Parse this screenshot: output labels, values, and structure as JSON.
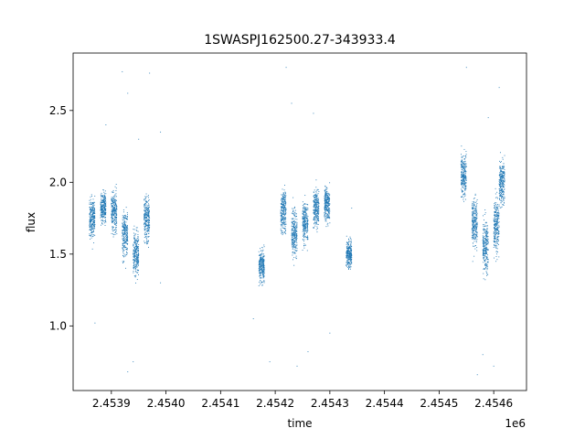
{
  "chart_data": {
    "type": "scatter",
    "title": "1SWASPJ162500.27-343933.4",
    "xlabel": "time",
    "ylabel": "flux",
    "x_offset_label": "1e6",
    "xlim": [
      2.45383,
      2.45466
    ],
    "ylim": [
      0.55,
      2.9
    ],
    "x_ticks": [
      2.4539,
      2.454,
      2.4541,
      2.4542,
      2.4543,
      2.4544,
      2.4545,
      2.4546
    ],
    "x_tick_labels": [
      "2.4539",
      "2.4540",
      "2.4541",
      "2.4542",
      "2.4543",
      "2.4544",
      "2.4545",
      "2.4546"
    ],
    "y_ticks": [
      1.0,
      1.5,
      2.0,
      2.5
    ],
    "y_tick_labels": [
      "1.0",
      "1.5",
      "2.0",
      "2.5"
    ],
    "grid": false,
    "marker_color": "#1f77b4",
    "series": [
      {
        "clusters": [
          {
            "x_range": [
              2.45386,
              2.45387
            ],
            "center": 1.75,
            "spread": 0.18
          },
          {
            "x_range": [
              2.45388,
              2.45389
            ],
            "center": 1.82,
            "spread": 0.14
          },
          {
            "x_range": [
              2.4539,
              2.45391
            ],
            "center": 1.8,
            "spread": 0.18
          },
          {
            "x_range": [
              2.45392,
              2.45393
            ],
            "center": 1.65,
            "spread": 0.2
          },
          {
            "x_range": [
              2.45394,
              2.45395
            ],
            "center": 1.5,
            "spread": 0.2
          },
          {
            "x_range": [
              2.45396,
              2.45397
            ],
            "center": 1.75,
            "spread": 0.2
          },
          {
            "x_range": [
              2.45417,
              2.45418
            ],
            "center": 1.42,
            "spread": 0.14
          },
          {
            "x_range": [
              2.45421,
              2.45422
            ],
            "center": 1.8,
            "spread": 0.18
          },
          {
            "x_range": [
              2.45423,
              2.45424
            ],
            "center": 1.65,
            "spread": 0.22
          },
          {
            "x_range": [
              2.45425,
              2.45426
            ],
            "center": 1.72,
            "spread": 0.17
          },
          {
            "x_range": [
              2.45427,
              2.45428
            ],
            "center": 1.82,
            "spread": 0.16
          },
          {
            "x_range": [
              2.45429,
              2.4543
            ],
            "center": 1.85,
            "spread": 0.15
          },
          {
            "x_range": [
              2.45433,
              2.45434
            ],
            "center": 1.5,
            "spread": 0.12
          },
          {
            "x_range": [
              2.45454,
              2.45455
            ],
            "center": 2.05,
            "spread": 0.18
          },
          {
            "x_range": [
              2.45456,
              2.45457
            ],
            "center": 1.72,
            "spread": 0.22
          },
          {
            "x_range": [
              2.45458,
              2.45459
            ],
            "center": 1.55,
            "spread": 0.22
          },
          {
            "x_range": [
              2.4546,
              2.45461
            ],
            "center": 1.7,
            "spread": 0.25
          },
          {
            "x_range": [
              2.45461,
              2.45462
            ],
            "center": 2.0,
            "spread": 0.2
          }
        ],
        "outliers": [
          [
            2.45387,
            1.02
          ],
          [
            2.45389,
            2.4
          ],
          [
            2.45392,
            2.77
          ],
          [
            2.45393,
            2.62
          ],
          [
            2.45393,
            0.68
          ],
          [
            2.45394,
            0.75
          ],
          [
            2.45395,
            2.3
          ],
          [
            2.45397,
            2.76
          ],
          [
            2.45399,
            2.35
          ],
          [
            2.45399,
            1.3
          ],
          [
            2.45416,
            1.05
          ],
          [
            2.45419,
            0.75
          ],
          [
            2.45422,
            2.8
          ],
          [
            2.45423,
            2.55
          ],
          [
            2.45424,
            0.72
          ],
          [
            2.45426,
            0.82
          ],
          [
            2.45427,
            2.48
          ],
          [
            2.4543,
            0.95
          ],
          [
            2.45434,
            1.82
          ],
          [
            2.45455,
            2.8
          ],
          [
            2.45457,
            0.66
          ],
          [
            2.45458,
            0.8
          ],
          [
            2.45459,
            2.45
          ],
          [
            2.4546,
            0.72
          ],
          [
            2.45461,
            2.66
          ]
        ]
      }
    ]
  }
}
